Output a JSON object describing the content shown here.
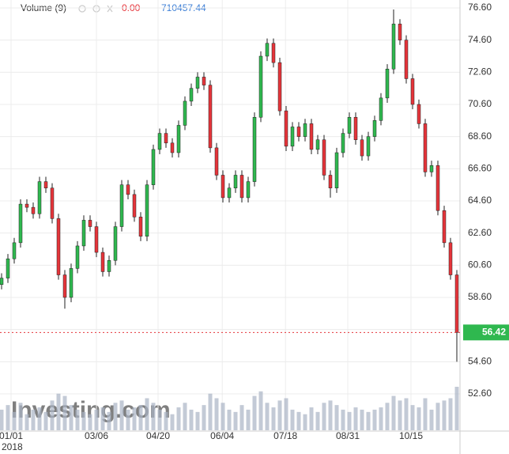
{
  "chart_data": {
    "type": "candlestick",
    "indicator": {
      "name": "Volume (9)",
      "change": "0.00",
      "value": "710457.44"
    },
    "watermark": "Investing.com",
    "year_label": "2018",
    "up_color": "#2fb84f",
    "down_color": "#e5343a",
    "open": [
      59.4,
      59.8,
      61.0,
      62.0,
      64.4,
      64.2,
      63.8,
      65.8,
      65.4,
      63.5,
      60.0,
      58.6,
      60.4,
      61.8,
      63.4,
      63.0,
      61.4,
      60.2,
      60.9,
      63.0,
      65.6,
      65.0,
      63.6,
      62.4,
      65.6,
      67.8,
      68.8,
      68.2,
      67.6,
      69.3,
      70.8,
      71.6,
      72.3,
      71.8,
      67.9,
      66.2,
      64.8,
      65.4,
      66.2,
      64.8,
      65.8,
      69.8,
      73.6,
      74.4,
      73.2,
      70.2,
      68.0,
      69.2,
      68.6,
      69.4,
      67.8,
      68.4,
      66.2,
      65.4,
      67.6,
      68.8,
      69.8,
      68.4,
      67.4,
      68.6,
      69.6,
      71.0,
      72.8,
      75.6,
      74.6,
      72.2,
      70.6,
      69.4,
      66.4,
      66.8,
      64.0,
      62.0,
      60.0
    ],
    "high": [
      60.1,
      61.3,
      62.3,
      64.7,
      64.7,
      64.5,
      66.1,
      66.1,
      65.7,
      63.8,
      60.3,
      60.7,
      62.1,
      63.7,
      63.7,
      63.3,
      61.7,
      61.2,
      63.3,
      65.9,
      65.9,
      65.3,
      63.9,
      65.9,
      68.1,
      69.1,
      69.1,
      68.5,
      69.6,
      71.1,
      71.9,
      72.6,
      72.6,
      72.1,
      68.2,
      66.5,
      65.7,
      66.5,
      66.5,
      66.1,
      70.1,
      73.9,
      74.7,
      74.7,
      73.5,
      70.5,
      69.5,
      69.5,
      69.7,
      69.7,
      68.7,
      68.7,
      66.5,
      67.9,
      69.1,
      70.1,
      70.1,
      68.7,
      68.9,
      69.9,
      71.3,
      73.1,
      76.5,
      75.9,
      74.9,
      72.5,
      70.9,
      69.7,
      67.1,
      67.1,
      64.3,
      62.3,
      60.3
    ],
    "low": [
      59.1,
      59.5,
      60.7,
      61.7,
      63.9,
      63.5,
      63.5,
      65.1,
      63.2,
      59.7,
      57.9,
      58.3,
      60.1,
      61.5,
      62.7,
      61.1,
      59.9,
      59.9,
      60.6,
      62.7,
      64.7,
      63.3,
      62.1,
      62.1,
      65.3,
      67.5,
      67.9,
      67.3,
      67.3,
      69.0,
      70.5,
      71.3,
      71.5,
      67.6,
      65.9,
      64.5,
      64.5,
      65.1,
      64.5,
      64.5,
      65.5,
      69.5,
      73.3,
      72.9,
      69.9,
      67.7,
      67.7,
      68.3,
      68.3,
      67.5,
      67.5,
      65.9,
      64.8,
      65.1,
      67.3,
      68.5,
      68.1,
      67.1,
      67.1,
      68.3,
      69.3,
      70.7,
      72.5,
      74.3,
      71.9,
      70.3,
      69.1,
      66.1,
      66.1,
      63.7,
      61.7,
      59.7,
      54.6
    ],
    "close": [
      59.8,
      61.0,
      62.0,
      64.4,
      64.2,
      63.8,
      65.8,
      65.4,
      63.5,
      60.0,
      58.6,
      60.4,
      61.8,
      63.4,
      63.0,
      61.4,
      60.2,
      60.9,
      63.0,
      65.6,
      65.0,
      63.6,
      62.4,
      65.6,
      67.8,
      68.8,
      68.2,
      67.6,
      69.3,
      70.8,
      71.6,
      72.3,
      71.8,
      67.9,
      66.2,
      64.8,
      65.4,
      66.2,
      64.8,
      65.8,
      69.8,
      73.6,
      74.4,
      73.2,
      70.2,
      68.0,
      69.2,
      68.6,
      69.4,
      67.8,
      68.4,
      66.2,
      65.4,
      67.6,
      68.8,
      69.8,
      68.4,
      67.4,
      68.6,
      69.6,
      71.0,
      72.8,
      75.6,
      74.6,
      72.2,
      70.6,
      69.4,
      66.4,
      66.8,
      64.0,
      62.0,
      60.0,
      56.42
    ],
    "volume": [
      900000,
      1100000,
      800000,
      1200000,
      700000,
      900000,
      1000000,
      800000,
      1300000,
      1600000,
      1500000,
      1100000,
      900000,
      800000,
      700000,
      900000,
      1000000,
      800000,
      1200000,
      1300000,
      900000,
      1000000,
      1100000,
      1400000,
      1200000,
      900000,
      800000,
      700000,
      1000000,
      1200000,
      900000,
      800000,
      1100000,
      1600000,
      1400000,
      1200000,
      900000,
      800000,
      1100000,
      900000,
      1500000,
      1700000,
      1200000,
      1000000,
      1300000,
      1400000,
      900000,
      800000,
      700000,
      1000000,
      800000,
      1200000,
      1300000,
      1100000,
      900000,
      800000,
      1000000,
      900000,
      800000,
      900000,
      1000000,
      1200000,
      1500000,
      1300000,
      1400000,
      1100000,
      1000000,
      1400000,
      900000,
      1200000,
      1300000,
      1400000,
      1900000
    ],
    "xlim": [
      -0.25,
      72.5
    ],
    "xticks": [
      {
        "value": 1.5,
        "label": "01/01"
      },
      {
        "value": 15,
        "label": "03/06"
      },
      {
        "value": 24.75,
        "label": "04/20"
      },
      {
        "value": 34.9,
        "label": "06/04"
      },
      {
        "value": 44.9,
        "label": "07/18"
      },
      {
        "value": 54.75,
        "label": "08/31"
      },
      {
        "value": 64.75,
        "label": "10/15"
      }
    ],
    "ylim": [
      52.1,
      77.1
    ],
    "yticks": [
      {
        "value": 52.6,
        "label": "52.60"
      },
      {
        "value": 54.6,
        "label": "54.60"
      },
      {
        "value": 56.6,
        "label": "56.60"
      },
      {
        "value": 58.6,
        "label": "58.60"
      },
      {
        "value": 60.6,
        "label": "60.60"
      },
      {
        "value": 62.6,
        "label": "62.60"
      },
      {
        "value": 64.6,
        "label": "64.60"
      },
      {
        "value": 66.6,
        "label": "66.60"
      },
      {
        "value": 68.6,
        "label": "68.60"
      },
      {
        "value": 70.6,
        "label": "70.60"
      },
      {
        "value": 72.6,
        "label": "72.60"
      },
      {
        "value": 74.6,
        "label": "74.60"
      },
      {
        "value": 76.6,
        "label": "76.60"
      }
    ],
    "grid": true
  }
}
